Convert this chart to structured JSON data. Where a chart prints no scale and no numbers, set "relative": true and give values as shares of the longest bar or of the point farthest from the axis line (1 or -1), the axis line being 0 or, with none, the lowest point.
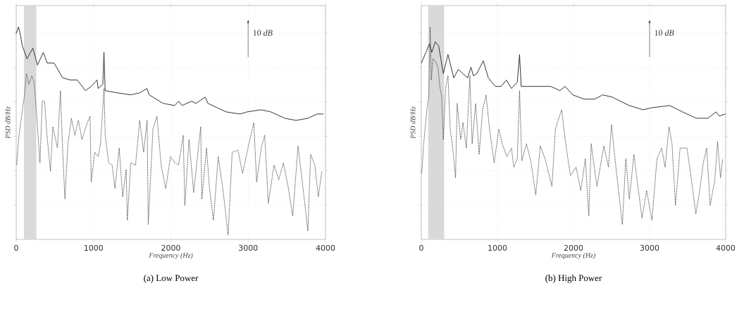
{
  "chart_data": [
    {
      "type": "line",
      "title": "(a) Low Power",
      "xlabel": "Frequency (Hz)",
      "ylabel": "PSD  dB/Hz",
      "annotations": [
        "10 *dB*"
      ],
      "relative": true,
      "tick_labels": "x",
      "grid": true,
      "xlim": [
        0,
        4000
      ],
      "xticks": [
        0,
        1000,
        2000,
        3000,
        4000
      ],
      "bands": [
        {
          "axis": "x",
          "from": 100,
          "to": 260,
          "color": "#d9d9d9"
        }
      ],
      "series": [
        {
          "color": "#333333",
          "line_style": "solid",
          "x": [
            0,
            30,
            55,
            80,
            140,
            215,
            275,
            350,
            400,
            490,
            600,
            700,
            790,
            895,
            970,
            1045,
            1060,
            1120,
            1135,
            1150,
            1300,
            1480,
            1600,
            1690,
            1720,
            1900,
            2050,
            2100,
            2145,
            2265,
            2325,
            2445,
            2480,
            2715,
            2895,
            2985,
            3170,
            3293,
            3474,
            3618,
            3772,
            3890,
            3970
          ],
          "values": [
            0.97,
            1.0,
            0.96,
            0.91,
            0.85,
            0.9,
            0.82,
            0.88,
            0.83,
            0.83,
            0.76,
            0.75,
            0.75,
            0.7,
            0.72,
            0.75,
            0.71,
            0.73,
            0.88,
            0.7,
            0.69,
            0.68,
            0.69,
            0.71,
            0.68,
            0.64,
            0.63,
            0.65,
            0.63,
            0.65,
            0.64,
            0.67,
            0.64,
            0.6,
            0.59,
            0.6,
            0.61,
            0.6,
            0.57,
            0.56,
            0.57,
            0.59,
            0.59
          ]
        },
        {
          "color": "#333333",
          "line_style": "dashed",
          "x": [
            6,
            36,
            81,
            111,
            132,
            163,
            202,
            232,
            262,
            307,
            337,
            367,
            398,
            443,
            473,
            533,
            572,
            602,
            630,
            669,
            714,
            759,
            804,
            850,
            910,
            955,
            970,
            1015,
            1060,
            1090,
            1136,
            1151,
            1196,
            1241,
            1277,
            1332,
            1377,
            1422,
            1437,
            1482,
            1543,
            1597,
            1648,
            1693,
            1708,
            1769,
            1820,
            1874,
            1934,
            1995,
            2054,
            2100,
            2160,
            2181,
            2235,
            2295,
            2386,
            2401,
            2461,
            2500,
            2551,
            2612,
            2672,
            2741,
            2793,
            2868,
            2928,
            3003,
            3073,
            3109,
            3169,
            3214,
            3260,
            3335,
            3395,
            3455,
            3516,
            3576,
            3645,
            3697,
            3772,
            3808,
            3862,
            3907,
            3953
          ],
          "values": [
            0.35,
            0.49,
            0.61,
            0.69,
            0.78,
            0.73,
            0.77,
            0.74,
            0.6,
            0.36,
            0.65,
            0.65,
            0.49,
            0.32,
            0.53,
            0.43,
            0.7,
            0.41,
            0.19,
            0.45,
            0.57,
            0.49,
            0.56,
            0.47,
            0.54,
            0.58,
            0.27,
            0.41,
            0.39,
            0.45,
            0.71,
            0.49,
            0.36,
            0.35,
            0.24,
            0.43,
            0.2,
            0.33,
            0.09,
            0.36,
            0.35,
            0.56,
            0.41,
            0.56,
            0.07,
            0.52,
            0.58,
            0.35,
            0.24,
            0.39,
            0.36,
            0.35,
            0.49,
            0.16,
            0.47,
            0.22,
            0.53,
            0.19,
            0.43,
            0.24,
            0.09,
            0.39,
            0.24,
            0.02,
            0.41,
            0.42,
            0.31,
            0.44,
            0.55,
            0.27,
            0.43,
            0.49,
            0.17,
            0.35,
            0.28,
            0.36,
            0.25,
            0.11,
            0.44,
            0.28,
            0.04,
            0.4,
            0.35,
            0.2,
            0.32
          ]
        }
      ]
    },
    {
      "type": "line",
      "title": "(b) High Power",
      "xlabel": "Frequency (Hz)",
      "ylabel": "PSD  dB/Hz",
      "annotations": [
        "10 *dB*"
      ],
      "relative": true,
      "tick_labels": "x",
      "grid": true,
      "xlim": [
        0,
        4000
      ],
      "xticks": [
        0,
        1000,
        2000,
        3000,
        4000
      ],
      "bands": [
        {
          "axis": "x",
          "from": 90,
          "to": 300,
          "color": "#d9d9d9"
        }
      ],
      "series": [
        {
          "color": "#333333",
          "line_style": "solid",
          "x": [
            0,
            61,
            107,
            137,
            183,
            228,
            289,
            350,
            426,
            486,
            608,
            653,
            684,
            729,
            814,
            881,
            972,
            1048,
            1118,
            1185,
            1261,
            1291,
            1312,
            1428,
            1549,
            1701,
            1823,
            1889,
            1990,
            2141,
            2277,
            2384,
            2505,
            2733,
            2915,
            3037,
            3264,
            3432,
            3614,
            3766,
            3872,
            3917,
            3993
          ],
          "values": [
            0.83,
            0.88,
            0.92,
            0.88,
            0.93,
            0.91,
            0.78,
            0.87,
            0.76,
            0.8,
            0.76,
            0.81,
            0.77,
            0.78,
            0.84,
            0.76,
            0.72,
            0.72,
            0.75,
            0.71,
            0.74,
            0.87,
            0.72,
            0.72,
            0.72,
            0.72,
            0.7,
            0.72,
            0.68,
            0.66,
            0.66,
            0.68,
            0.67,
            0.63,
            0.61,
            0.62,
            0.63,
            0.6,
            0.57,
            0.57,
            0.6,
            0.58,
            0.59
          ]
        },
        {
          "color": "#333333",
          "line_style": "dashed",
          "x": [
            6,
            31,
            76,
            98,
            116,
            131,
            152,
            183,
            219,
            243,
            268,
            289,
            319,
            350,
            380,
            419,
            450,
            471,
            517,
            547,
            592,
            638,
            668,
            714,
            760,
            805,
            851,
            896,
            957,
            1018,
            1063,
            1124,
            1185,
            1215,
            1261,
            1291,
            1321,
            1382,
            1443,
            1504,
            1564,
            1625,
            1716,
            1762,
            1844,
            1898,
            1959,
            2034,
            2095,
            2156,
            2201,
            2232,
            2308,
            2399,
            2460,
            2499,
            2551,
            2642,
            2687,
            2733,
            2794,
            2839,
            2900,
            2961,
            3031,
            3097,
            3158,
            3204,
            3255,
            3295,
            3340,
            3401,
            3492,
            3553,
            3608,
            3659,
            3705,
            3750,
            3796,
            3857,
            3893,
            3932,
            3960
          ],
          "values": [
            0.31,
            0.45,
            0.62,
            0.67,
            1.0,
            0.75,
            0.85,
            0.84,
            0.81,
            0.72,
            0.67,
            0.47,
            0.71,
            0.77,
            0.52,
            0.41,
            0.29,
            0.64,
            0.47,
            0.55,
            0.43,
            0.77,
            0.45,
            0.64,
            0.4,
            0.61,
            0.68,
            0.52,
            0.36,
            0.52,
            0.45,
            0.39,
            0.43,
            0.34,
            0.38,
            0.7,
            0.37,
            0.45,
            0.36,
            0.21,
            0.44,
            0.38,
            0.25,
            0.52,
            0.61,
            0.45,
            0.3,
            0.34,
            0.23,
            0.38,
            0.11,
            0.45,
            0.25,
            0.44,
            0.34,
            0.54,
            0.36,
            0.07,
            0.38,
            0.19,
            0.4,
            0.27,
            0.1,
            0.23,
            0.09,
            0.38,
            0.43,
            0.34,
            0.53,
            0.45,
            0.16,
            0.43,
            0.43,
            0.27,
            0.12,
            0.23,
            0.36,
            0.43,
            0.16,
            0.28,
            0.46,
            0.29,
            0.38
          ]
        }
      ]
    }
  ]
}
